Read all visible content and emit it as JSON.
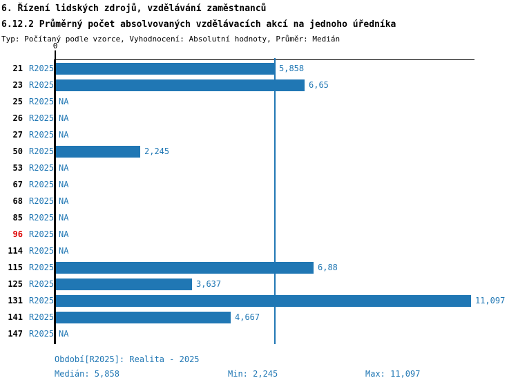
{
  "title_line1": "6. Řízení lidských zdrojů, vzdělávání zaměstnanců",
  "title_line2": "6.12.2 Průměrný počet absolvovaných vzdělávacích akcí na jednoho úředníka",
  "subtitle": "Typ: Počítaný podle vzorce, Vyhodnocení: Absolutní hodnoty, Průměr: Medián",
  "colors": {
    "bar": "#2077b4",
    "text_blue": "#2077b4",
    "row_id": "#000000",
    "row_id_highlight": "#dd0000",
    "axis": "#000000"
  },
  "axis": {
    "zero_label": "0",
    "xmax": 11.2
  },
  "chart_data": {
    "type": "bar",
    "orientation": "horizontal",
    "title": "6.12.2 Průměrný počet absolvovaných vzdělávacích akcí na jednoho úředníka",
    "series_label": "R2025",
    "xlim": [
      0,
      11.2
    ],
    "grid": false,
    "median": 5.858,
    "rows": [
      {
        "id": "21",
        "period": "R2025",
        "value": 5.858,
        "label": "5,858",
        "na": false,
        "highlight": false
      },
      {
        "id": "23",
        "period": "R2025",
        "value": 6.65,
        "label": "6,65",
        "na": false,
        "highlight": false
      },
      {
        "id": "25",
        "period": "R2025",
        "value": null,
        "label": "NA",
        "na": true,
        "highlight": false
      },
      {
        "id": "26",
        "period": "R2025",
        "value": null,
        "label": "NA",
        "na": true,
        "highlight": false
      },
      {
        "id": "27",
        "period": "R2025",
        "value": null,
        "label": "NA",
        "na": true,
        "highlight": false
      },
      {
        "id": "50",
        "period": "R2025",
        "value": 2.245,
        "label": "2,245",
        "na": false,
        "highlight": false
      },
      {
        "id": "53",
        "period": "R2025",
        "value": null,
        "label": "NA",
        "na": true,
        "highlight": false
      },
      {
        "id": "67",
        "period": "R2025",
        "value": null,
        "label": "NA",
        "na": true,
        "highlight": false
      },
      {
        "id": "68",
        "period": "R2025",
        "value": null,
        "label": "NA",
        "na": true,
        "highlight": false
      },
      {
        "id": "85",
        "period": "R2025",
        "value": null,
        "label": "NA",
        "na": true,
        "highlight": false
      },
      {
        "id": "96",
        "period": "R2025",
        "value": null,
        "label": "NA",
        "na": true,
        "highlight": true
      },
      {
        "id": "114",
        "period": "R2025",
        "value": null,
        "label": "NA",
        "na": true,
        "highlight": false
      },
      {
        "id": "115",
        "period": "R2025",
        "value": 6.88,
        "label": "6,88",
        "na": false,
        "highlight": false
      },
      {
        "id": "125",
        "period": "R2025",
        "value": 3.637,
        "label": "3,637",
        "na": false,
        "highlight": false
      },
      {
        "id": "131",
        "period": "R2025",
        "value": 11.097,
        "label": "11,097",
        "na": false,
        "highlight": false
      },
      {
        "id": "141",
        "period": "R2025",
        "value": 4.667,
        "label": "4,667",
        "na": false,
        "highlight": false
      },
      {
        "id": "147",
        "period": "R2025",
        "value": null,
        "label": "NA",
        "na": true,
        "highlight": false
      }
    ]
  },
  "footer": {
    "period_line": "Období[R2025]: Realita - 2025",
    "median": "Medián: 5,858",
    "min": "Min: 2,245",
    "max": "Max: 11,097"
  }
}
